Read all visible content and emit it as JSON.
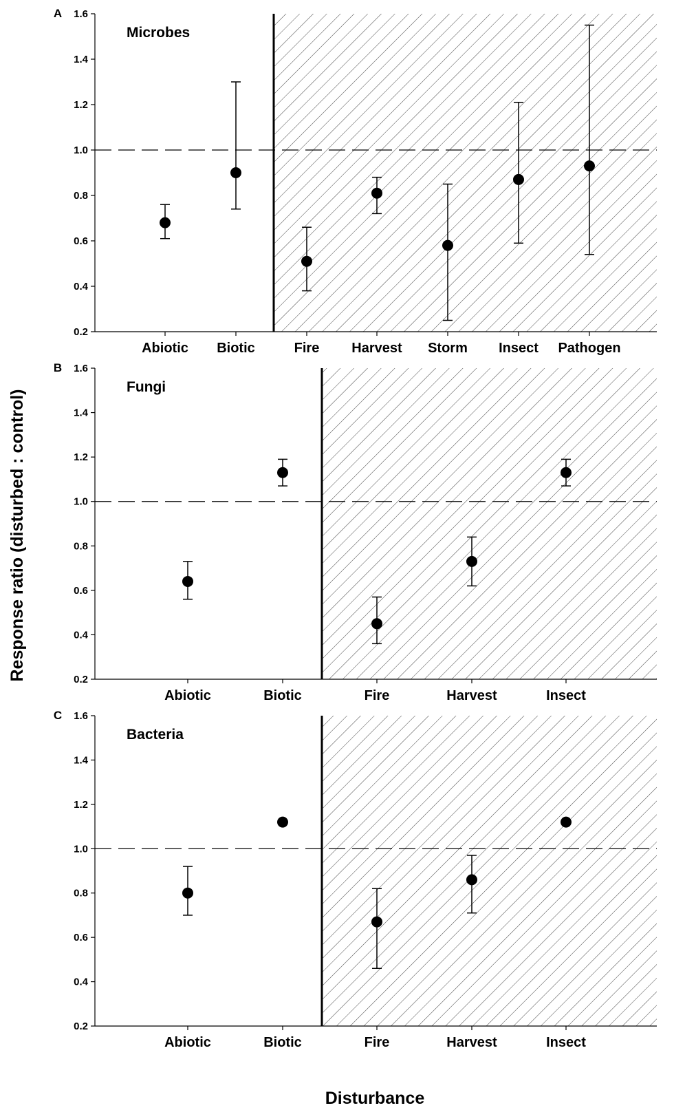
{
  "figure": {
    "ylabel": "Response ratio (disturbed : control)",
    "xlabel": "Disturbance"
  },
  "chart_data": [
    {
      "type": "scatter",
      "panel": "A",
      "title": "Microbes",
      "categories": [
        "Abiotic",
        "Biotic",
        "Fire",
        "Harvest",
        "Storm",
        "Insect",
        "Pathogen"
      ],
      "values": [
        0.68,
        0.9,
        0.51,
        0.81,
        0.58,
        0.87,
        0.93
      ],
      "err_low": [
        0.61,
        0.74,
        0.38,
        0.72,
        0.25,
        0.59,
        0.54
      ],
      "err_high": [
        0.76,
        1.3,
        0.66,
        0.88,
        0.85,
        1.21,
        1.55
      ],
      "hatched_from_category": "Fire",
      "reference_line": 1.0,
      "ylim": [
        0.2,
        1.6
      ],
      "yticks": [
        "0.2",
        "0.4",
        "0.6",
        "0.8",
        "1.0",
        "1.2",
        "1.4",
        "1.6"
      ]
    },
    {
      "type": "scatter",
      "panel": "B",
      "title": "Fungi",
      "categories": [
        "Abiotic",
        "Biotic",
        "Fire",
        "Harvest",
        "Insect"
      ],
      "values": [
        0.64,
        1.13,
        0.45,
        0.73,
        1.13
      ],
      "err_low": [
        0.56,
        1.07,
        0.36,
        0.62,
        1.07
      ],
      "err_high": [
        0.73,
        1.19,
        0.57,
        0.84,
        1.19
      ],
      "hatched_from_category": "Fire",
      "reference_line": 1.0,
      "ylim": [
        0.2,
        1.6
      ],
      "yticks": [
        "0.2",
        "0.4",
        "0.6",
        "0.8",
        "1.0",
        "1.2",
        "1.4",
        "1.6"
      ]
    },
    {
      "type": "scatter",
      "panel": "C",
      "title": "Bacteria",
      "categories": [
        "Abiotic",
        "Biotic",
        "Fire",
        "Harvest",
        "Insect"
      ],
      "values": [
        0.8,
        1.12,
        0.67,
        0.86,
        1.12
      ],
      "err_low": [
        0.7,
        1.12,
        0.46,
        0.71,
        1.12
      ],
      "err_high": [
        0.92,
        1.12,
        0.82,
        0.97,
        1.12
      ],
      "hatched_from_category": "Fire",
      "reference_line": 1.0,
      "ylim": [
        0.2,
        1.6
      ],
      "yticks": [
        "0.2",
        "0.4",
        "0.6",
        "0.8",
        "1.0",
        "1.2",
        "1.4",
        "1.6"
      ]
    }
  ]
}
